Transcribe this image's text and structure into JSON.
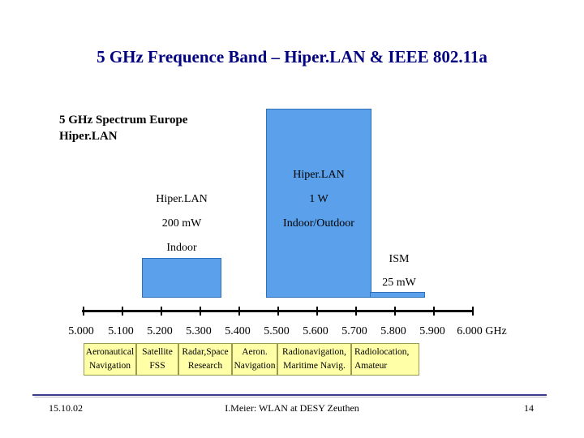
{
  "title": "5 GHz Frequence Band – Hiper.LAN & IEEE 802.11a",
  "spectrum_heading": {
    "line1": "5 GHz Spectrum Europe",
    "line2": "Hiper.LAN"
  },
  "bands": [
    {
      "id": "hiperlan-low",
      "lines": [
        "Hiper.LAN",
        "200 mW",
        "Indoor"
      ],
      "start_ghz": 5.15,
      "end_ghz": 5.35
    },
    {
      "id": "hiperlan-high",
      "lines": [
        "Hiper.LAN",
        "1 W",
        "Indoor/Outdoor"
      ],
      "start_ghz": 5.47,
      "end_ghz": 5.725
    },
    {
      "id": "ism",
      "lines": [
        "ISM",
        "25 mW"
      ],
      "start_ghz": 5.725,
      "end_ghz": 5.875
    }
  ],
  "axis": {
    "ticks": [
      "5.000",
      "5.100",
      "5.200",
      "5.300",
      "5.400",
      "5.500",
      "5.600",
      "5.700",
      "5.800",
      "5.900",
      "6.000 GHz"
    ]
  },
  "allocations": [
    {
      "line1": "Aeronautical",
      "line2": "Navigation"
    },
    {
      "line1": "Satellite",
      "line2": "FSS"
    },
    {
      "line1": "Radar,Space",
      "line2": "Research"
    },
    {
      "line1": "Aeron.",
      "line2": "Navigation"
    },
    {
      "line1": "Radionavigation,",
      "line2": "Maritime Navig."
    },
    {
      "line1": "Radiolocation,",
      "line2": "Amateur"
    }
  ],
  "footer": {
    "date": "15.10.02",
    "center": "I.Meier: WLAN at DESY Zeuthen",
    "page": "14"
  },
  "colors": {
    "title": "#000080",
    "band_fill": "#5aa0ea",
    "allocation_fill": "#ffffa8",
    "footer_rule": "#3c3c8c"
  }
}
